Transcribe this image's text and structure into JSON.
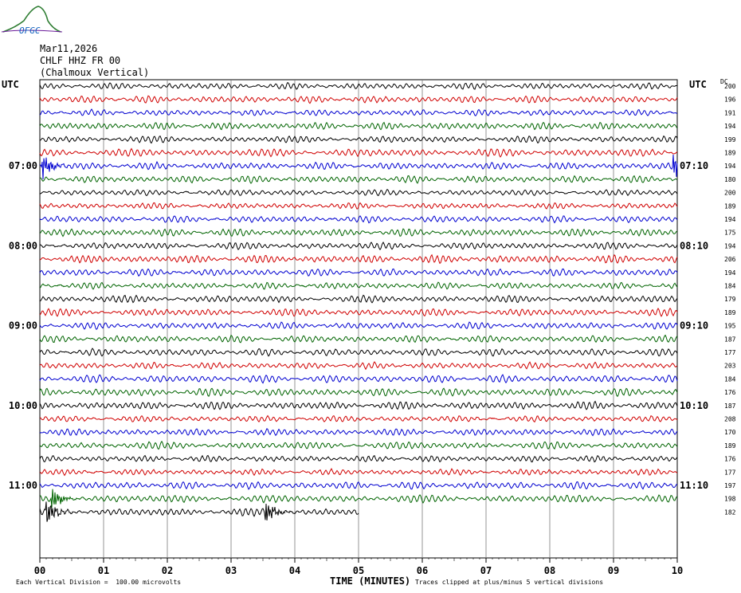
{
  "header": {
    "logo_text": "OFGC",
    "date": "Mar11,2026",
    "station": "CHLF HHZ FR 00",
    "location": "(Chalmoux Vertical)"
  },
  "axis_labels": {
    "left_unit": "UTC",
    "right_unit": "UTC",
    "dc_label": "DC",
    "x_title": "TIME (MINUTES)"
  },
  "footer": {
    "scale_note": "Each Vertical Division =  100.00 microvolts",
    "clip_note": "Traces clipped at plus/minus 5 vertical divisions"
  },
  "colors": {
    "trace_cycle": [
      "#000000",
      "#d00000",
      "#0000d0",
      "#006400"
    ],
    "grid": "#7a7a7a",
    "background": "#ffffff"
  },
  "chart_data": {
    "type": "line",
    "x_ticks": [
      "00",
      "01",
      "02",
      "03",
      "04",
      "05",
      "06",
      "07",
      "08",
      "09",
      "10"
    ],
    "xlim": [
      0,
      10
    ],
    "left_hour_labels": [
      {
        "row": 6,
        "text": "07:00"
      },
      {
        "row": 12,
        "text": "08:00"
      },
      {
        "row": 18,
        "text": "09:00"
      },
      {
        "row": 24,
        "text": "10:00"
      },
      {
        "row": 30,
        "text": "11:00"
      }
    ],
    "right_hour_labels": [
      {
        "row": 6,
        "text": "07:10"
      },
      {
        "row": 12,
        "text": "08:10"
      },
      {
        "row": 18,
        "text": "09:10"
      },
      {
        "row": 24,
        "text": "10:10"
      },
      {
        "row": 30,
        "text": "11:10"
      }
    ],
    "dc_offsets": [
      200,
      196,
      191,
      194,
      199,
      189,
      194,
      180,
      200,
      189,
      194,
      175,
      194,
      206,
      194,
      184,
      179,
      189,
      195,
      187,
      177,
      203,
      184,
      176,
      187,
      208,
      170,
      189,
      176,
      177,
      197,
      198,
      182
    ],
    "row_count": 33,
    "last_row_end_minute": 5.0,
    "events": [
      {
        "row": 6,
        "minute": 0.05
      },
      {
        "row": 6,
        "minute": 9.95
      },
      {
        "row": 31,
        "minute": 0.2
      },
      {
        "row": 32,
        "minute": 0.12
      },
      {
        "row": 32,
        "minute": 3.55
      }
    ]
  }
}
